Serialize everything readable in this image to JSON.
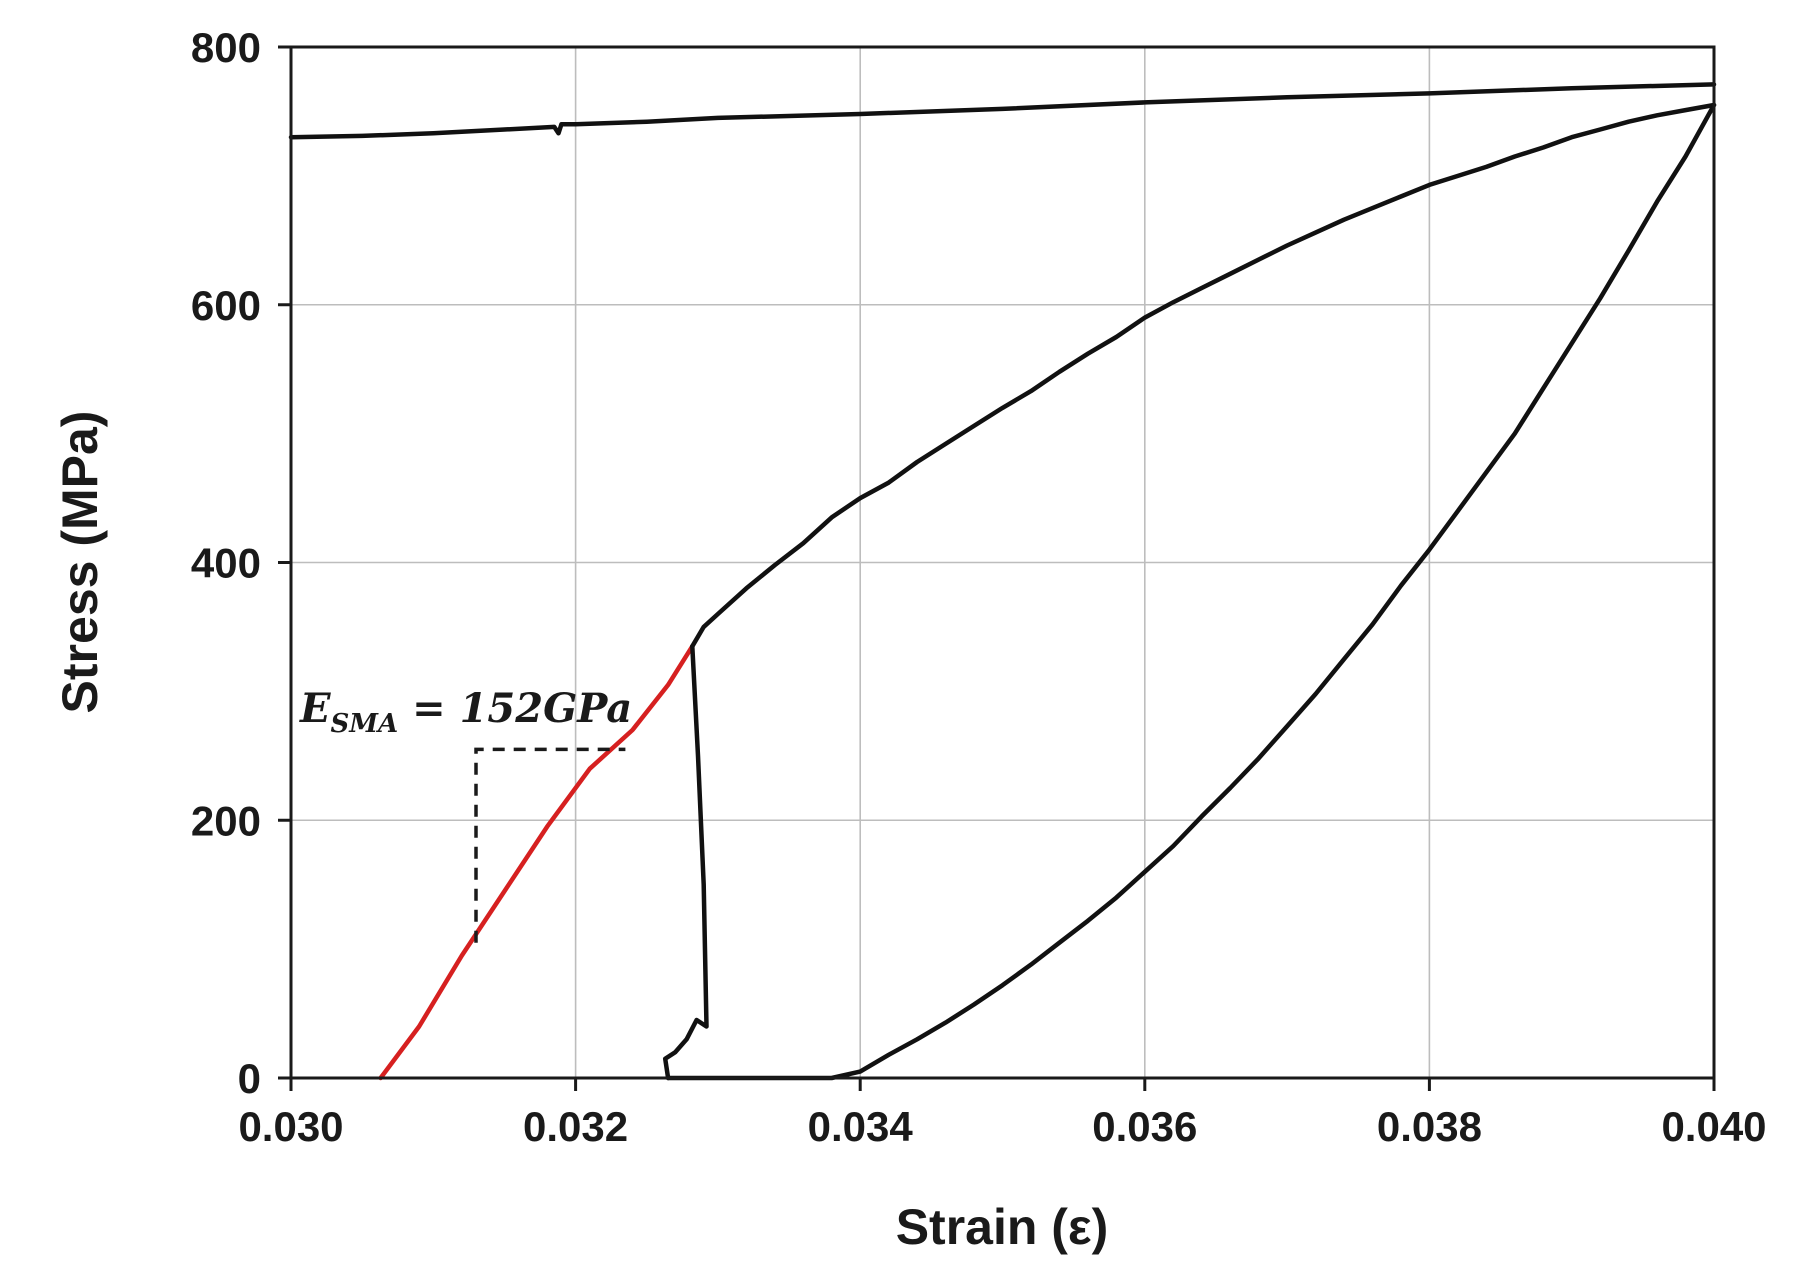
{
  "chart_data": {
    "type": "line",
    "title": "",
    "xlabel": "Strain (ε)",
    "ylabel": "Stress (MPa)",
    "xlim": [
      0.03,
      0.04
    ],
    "ylim": [
      0,
      800
    ],
    "x_ticks": [
      0.03,
      0.032,
      0.034,
      0.036,
      0.038,
      0.04
    ],
    "x_tick_labels": [
      "0.030",
      "0.032",
      "0.034",
      "0.036",
      "0.038",
      "0.040"
    ],
    "y_ticks": [
      0,
      200,
      400,
      600,
      800
    ],
    "y_tick_labels": [
      "0",
      "200",
      "400",
      "600",
      "800"
    ],
    "grid": true,
    "legend": "none",
    "annotation": {
      "label_main": "E",
      "label_sub": "SMA",
      "label_rest": " = 152GPa",
      "slope_guide": {
        "x": [
          0.0313,
          0.0313,
          0.03235
        ],
        "y": [
          105,
          255,
          255
        ]
      }
    },
    "series": [
      {
        "color": "#d62020",
        "x": [
          0.03063,
          0.0309,
          0.0312,
          0.0315,
          0.0318,
          0.0321,
          0.0324,
          0.03265,
          0.03282
        ],
        "y": [
          0,
          40,
          95,
          145,
          195,
          240,
          270,
          305,
          335
        ]
      },
      {
        "color": "#111111",
        "x": [
          0.03282,
          0.0329,
          0.033,
          0.0332,
          0.0334,
          0.0336,
          0.0338,
          0.034,
          0.0342,
          0.0344,
          0.0346,
          0.0348,
          0.035,
          0.0352,
          0.0354,
          0.0356,
          0.0358,
          0.036,
          0.0362,
          0.0364,
          0.0366,
          0.0368,
          0.037,
          0.0372,
          0.0374,
          0.0376,
          0.0378,
          0.038,
          0.0382,
          0.0384,
          0.0386,
          0.0388,
          0.039,
          0.0392,
          0.0394,
          0.0396,
          0.0398,
          0.04
        ],
        "y": [
          335,
          350,
          360,
          380,
          398,
          415,
          435,
          450,
          462,
          478,
          492,
          506,
          520,
          533,
          548,
          562,
          575,
          590,
          602,
          613,
          624,
          635,
          646,
          656,
          666,
          675,
          684,
          693,
          700,
          707,
          715,
          722,
          730,
          736,
          742,
          747,
          751,
          755
        ]
      },
      {
        "color": "#111111",
        "x": [
          0.04,
          0.0398,
          0.0396,
          0.0394,
          0.0392,
          0.039,
          0.0388,
          0.0386,
          0.0384,
          0.0382,
          0.038,
          0.0378,
          0.0376,
          0.0374,
          0.0372,
          0.037,
          0.0368,
          0.0366,
          0.0364,
          0.0362,
          0.036,
          0.0358,
          0.0356,
          0.0354,
          0.0352,
          0.035,
          0.0348,
          0.0346,
          0.0344,
          0.0342,
          0.034,
          0.0338,
          0.0336,
          0.0334,
          0.0332,
          0.033,
          0.0328,
          0.03265
        ],
        "y": [
          755,
          715,
          680,
          642,
          605,
          570,
          535,
          500,
          470,
          440,
          410,
          382,
          352,
          325,
          298,
          273,
          248,
          225,
          203,
          180,
          160,
          140,
          122,
          105,
          88,
          72,
          57,
          43,
          30,
          18,
          5,
          -7,
          -18,
          -28,
          -38,
          -48,
          -55,
          -62
        ]
      },
      {
        "color": "#111111",
        "x": [
          0.03282,
          0.03286,
          0.0329,
          0.03292,
          0.03285,
          0.03278,
          0.0327,
          0.03263,
          0.03265
        ],
        "y": [
          335,
          250,
          150,
          40,
          45,
          30,
          20,
          15,
          0
        ]
      },
      {
        "color": "#111111",
        "x": [
          0.03,
          0.0305,
          0.031,
          0.0315,
          0.03185,
          0.03188,
          0.0319,
          0.032,
          0.0325,
          0.033,
          0.034,
          0.035,
          0.036,
          0.037,
          0.038,
          0.039,
          0.04
        ],
        "y": [
          730,
          731,
          733,
          736,
          738,
          733,
          740,
          740,
          742,
          745,
          748,
          752,
          757,
          761,
          764,
          768,
          771
        ]
      }
    ]
  }
}
